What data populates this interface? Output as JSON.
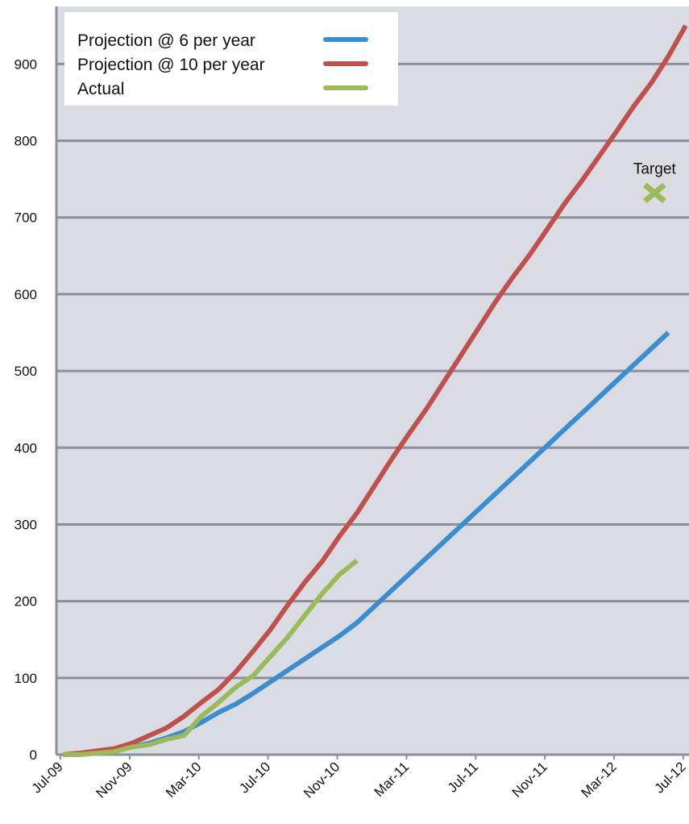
{
  "chart_data": {
    "type": "line",
    "categories": [
      "Jul-09",
      null,
      null,
      null,
      "Nov-09",
      null,
      null,
      null,
      "Mar-10",
      null,
      null,
      null,
      "Jul-10",
      null,
      null,
      null,
      "Nov-10",
      null,
      null,
      null,
      "Mar-11",
      null,
      null,
      null,
      "Jul-11",
      null,
      null,
      null,
      "Nov-11",
      null,
      null,
      null,
      "Mar-12",
      null,
      null,
      null,
      "Jul-12"
    ],
    "series": [
      {
        "name": "Projection @ 6 per year",
        "color": "#3a8ed0",
        "values": [
          0,
          1,
          3,
          6,
          10,
          15,
          22,
          30,
          42,
          55,
          66,
          80,
          95,
          110,
          125,
          140,
          155,
          172,
          193,
          214,
          235,
          256,
          277,
          298,
          319,
          340,
          361,
          382,
          403,
          424,
          445,
          466,
          487,
          508,
          529,
          550,
          null
        ]
      },
      {
        "name": "Projection @ 10 per year",
        "color": "#c0504d",
        "values": [
          0,
          2,
          5,
          8,
          15,
          25,
          35,
          50,
          68,
          85,
          108,
          135,
          163,
          195,
          225,
          252,
          285,
          315,
          350,
          385,
          418,
          450,
          485,
          520,
          555,
          590,
          622,
          652,
          685,
          718,
          748,
          780,
          812,
          845,
          875,
          910,
          950
        ]
      },
      {
        "name": "Actual",
        "color": "#9bbb59",
        "values": [
          0,
          0,
          2,
          4,
          10,
          13,
          20,
          25,
          50,
          68,
          88,
          103,
          128,
          153,
          182,
          210,
          235,
          253,
          null,
          null,
          null,
          null,
          null,
          null,
          null,
          null,
          null,
          null,
          null,
          null,
          null,
          null,
          null,
          null,
          null,
          null,
          null
        ]
      }
    ],
    "target": {
      "label": "Target",
      "value": 732,
      "color": "#9bbb59"
    },
    "ylim": [
      0,
      975
    ],
    "yticks": [
      0,
      100,
      200,
      300,
      400,
      500,
      600,
      700,
      800,
      900
    ],
    "grid": true,
    "legend": "top-left"
  }
}
